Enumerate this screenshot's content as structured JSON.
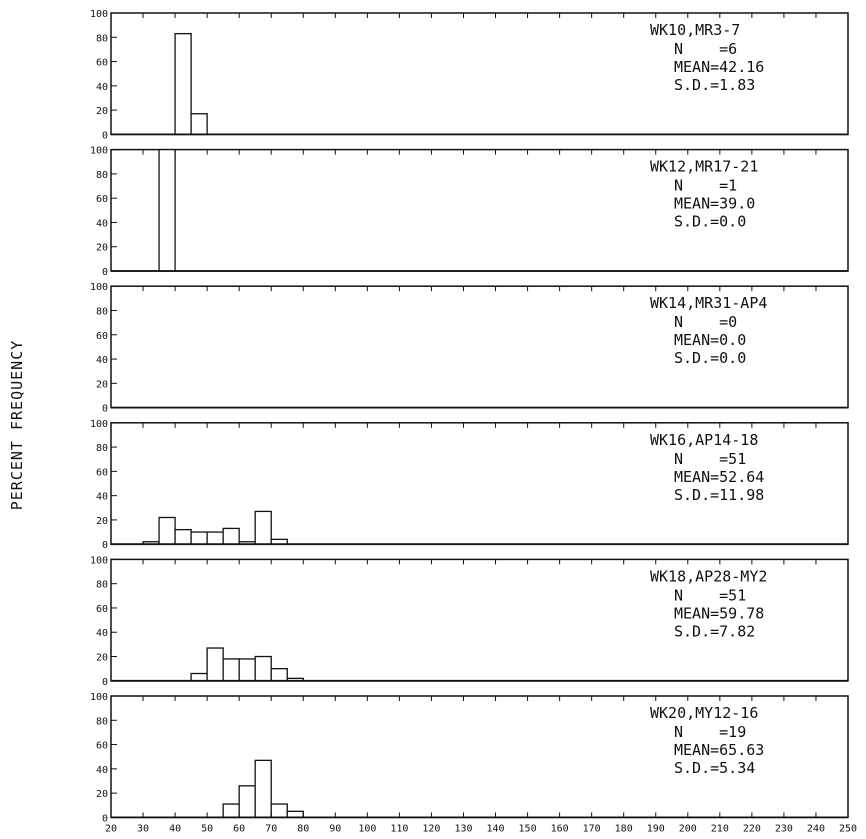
{
  "chart_data": {
    "type": "bar",
    "ylabel": "PERCENT FREQUENCY",
    "xlabel": "",
    "x_ticks": [
      20,
      30,
      40,
      50,
      60,
      70,
      80,
      90,
      100,
      110,
      120,
      130,
      140,
      150,
      160,
      170,
      180,
      190,
      200,
      210,
      220,
      230,
      240,
      250
    ],
    "xlim": [
      20,
      250
    ],
    "ylim": [
      0,
      100
    ],
    "y_ticks": [
      0,
      20,
      40,
      60,
      80,
      100
    ],
    "bin_width": 5,
    "panels": [
      {
        "label": "WK10,MR3-7",
        "stats": [
          "N    =6",
          "MEAN=42.16",
          "S.D.=1.83"
        ],
        "bins": [
          {
            "x": 40,
            "value": 83
          },
          {
            "x": 45,
            "value": 17
          }
        ]
      },
      {
        "label": "WK12,MR17-21",
        "stats": [
          "N    =1",
          "MEAN=39.0",
          "S.D.=0.0"
        ],
        "bins": [
          {
            "x": 35,
            "value": 100
          }
        ]
      },
      {
        "label": "WK14,MR31-AP4",
        "stats": [
          "N    =0",
          "MEAN=0.0",
          "S.D.=0.0"
        ],
        "bins": []
      },
      {
        "label": "WK16,AP14-18",
        "stats": [
          "N    =51",
          "MEAN=52.64",
          "S.D.=11.98"
        ],
        "bins": [
          {
            "x": 30,
            "value": 2
          },
          {
            "x": 35,
            "value": 22
          },
          {
            "x": 40,
            "value": 12
          },
          {
            "x": 45,
            "value": 10
          },
          {
            "x": 50,
            "value": 10
          },
          {
            "x": 55,
            "value": 13
          },
          {
            "x": 60,
            "value": 2
          },
          {
            "x": 65,
            "value": 27
          },
          {
            "x": 70,
            "value": 4
          }
        ]
      },
      {
        "label": "WK18,AP28-MY2",
        "stats": [
          "N    =51",
          "MEAN=59.78",
          "S.D.=7.82"
        ],
        "bins": [
          {
            "x": 45,
            "value": 6
          },
          {
            "x": 50,
            "value": 27
          },
          {
            "x": 55,
            "value": 18
          },
          {
            "x": 60,
            "value": 18
          },
          {
            "x": 65,
            "value": 20
          },
          {
            "x": 70,
            "value": 10
          },
          {
            "x": 75,
            "value": 2
          }
        ]
      },
      {
        "label": "WK20,MY12-16",
        "stats": [
          "N    =19",
          "MEAN=65.63",
          "S.D.=5.34"
        ],
        "bins": [
          {
            "x": 55,
            "value": 11
          },
          {
            "x": 60,
            "value": 26
          },
          {
            "x": 65,
            "value": 47
          },
          {
            "x": 70,
            "value": 11
          },
          {
            "x": 75,
            "value": 5
          }
        ]
      }
    ]
  }
}
